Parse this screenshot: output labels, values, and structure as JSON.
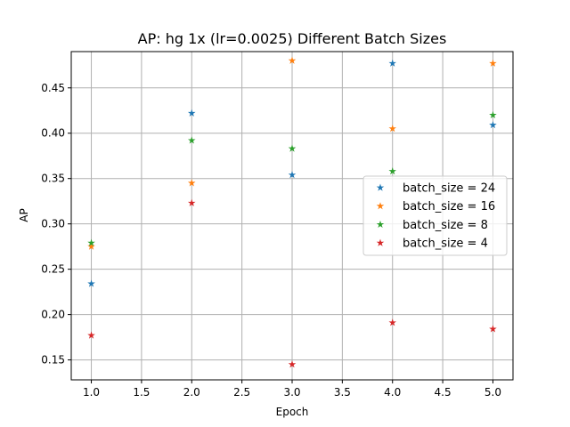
{
  "chart_data": {
    "type": "scatter",
    "title": "AP: hg 1x (lr=0.0025) Different Batch Sizes",
    "xlabel": "Epoch",
    "ylabel": "AP",
    "xlim": [
      0.8,
      5.2
    ],
    "ylim": [
      0.128,
      0.49
    ],
    "xticks": [
      1.0,
      1.5,
      2.0,
      2.5,
      3.0,
      3.5,
      4.0,
      4.5,
      5.0
    ],
    "xtick_labels": [
      "1.0",
      "1.5",
      "2.0",
      "2.5",
      "3.0",
      "3.5",
      "4.0",
      "4.5",
      "5.0"
    ],
    "yticks": [
      0.15,
      0.2,
      0.25,
      0.3,
      0.35,
      0.4,
      0.45
    ],
    "ytick_labels": [
      "0.15",
      "0.20",
      "0.25",
      "0.30",
      "0.35",
      "0.40",
      "0.45"
    ],
    "grid": true,
    "marker": "star",
    "legend_position": "center-right",
    "x": [
      1,
      2,
      3,
      4,
      5
    ],
    "series": [
      {
        "name": "batch_size = 24",
        "color": "#1f77b4",
        "values": [
          0.234,
          0.422,
          0.354,
          0.477,
          0.409
        ]
      },
      {
        "name": "batch_size = 16",
        "color": "#ff7f0e",
        "values": [
          0.275,
          0.345,
          0.48,
          0.405,
          0.477
        ]
      },
      {
        "name": "batch_size = 8",
        "color": "#2ca02c",
        "values": [
          0.279,
          0.392,
          0.383,
          0.358,
          0.42
        ]
      },
      {
        "name": "batch_size = 4",
        "color": "#d62728",
        "values": [
          0.177,
          0.323,
          0.145,
          0.191,
          0.184
        ]
      }
    ]
  }
}
